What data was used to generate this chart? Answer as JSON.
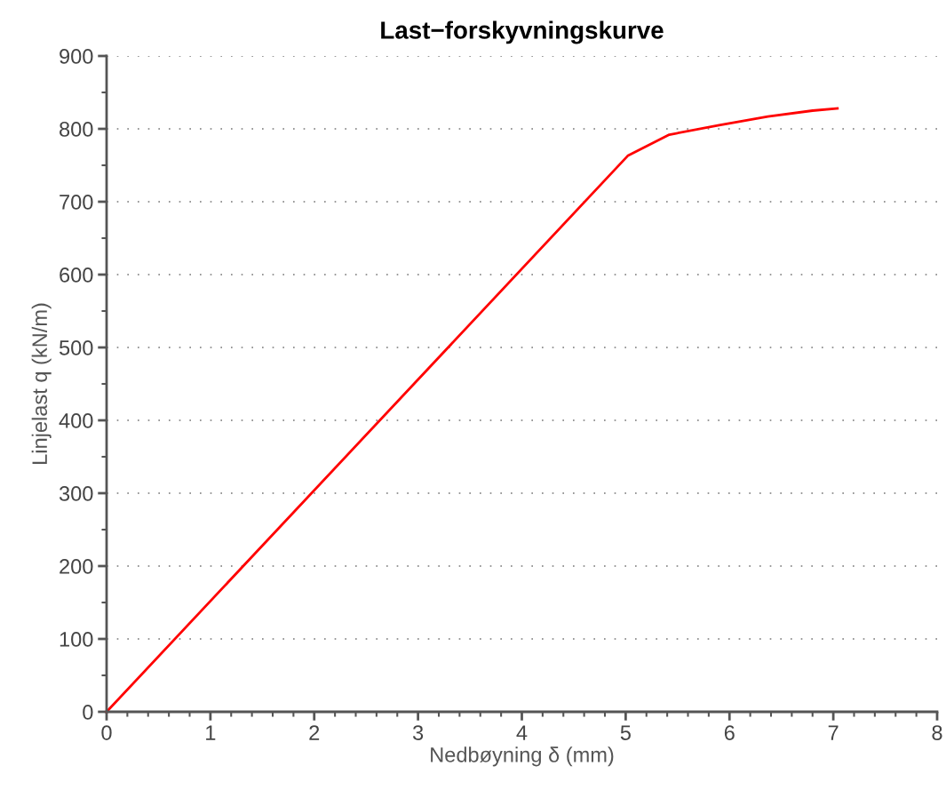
{
  "chart_data": {
    "type": "line",
    "title": "Last−forskyvningskurve",
    "xlabel": "Nedbøyning δ (mm)",
    "ylabel": "Linjelast q (kN/m)",
    "x": [
      0,
      5.02,
      5.42,
      5.9,
      6.37,
      6.8,
      7.04
    ],
    "series": [
      {
        "color": "#ff0000",
        "values": [
          0,
          763,
          792,
          805,
          817,
          825,
          828
        ]
      }
    ],
    "xlim": [
      0,
      8
    ],
    "xticks": [
      0,
      1,
      2,
      3,
      4,
      5,
      6,
      7,
      8
    ],
    "ylim": [
      0,
      900
    ],
    "yticks": [
      0,
      100,
      200,
      300,
      400,
      500,
      600,
      700,
      800,
      900
    ],
    "grid": "y",
    "line_style": "solid",
    "marker": "none"
  }
}
